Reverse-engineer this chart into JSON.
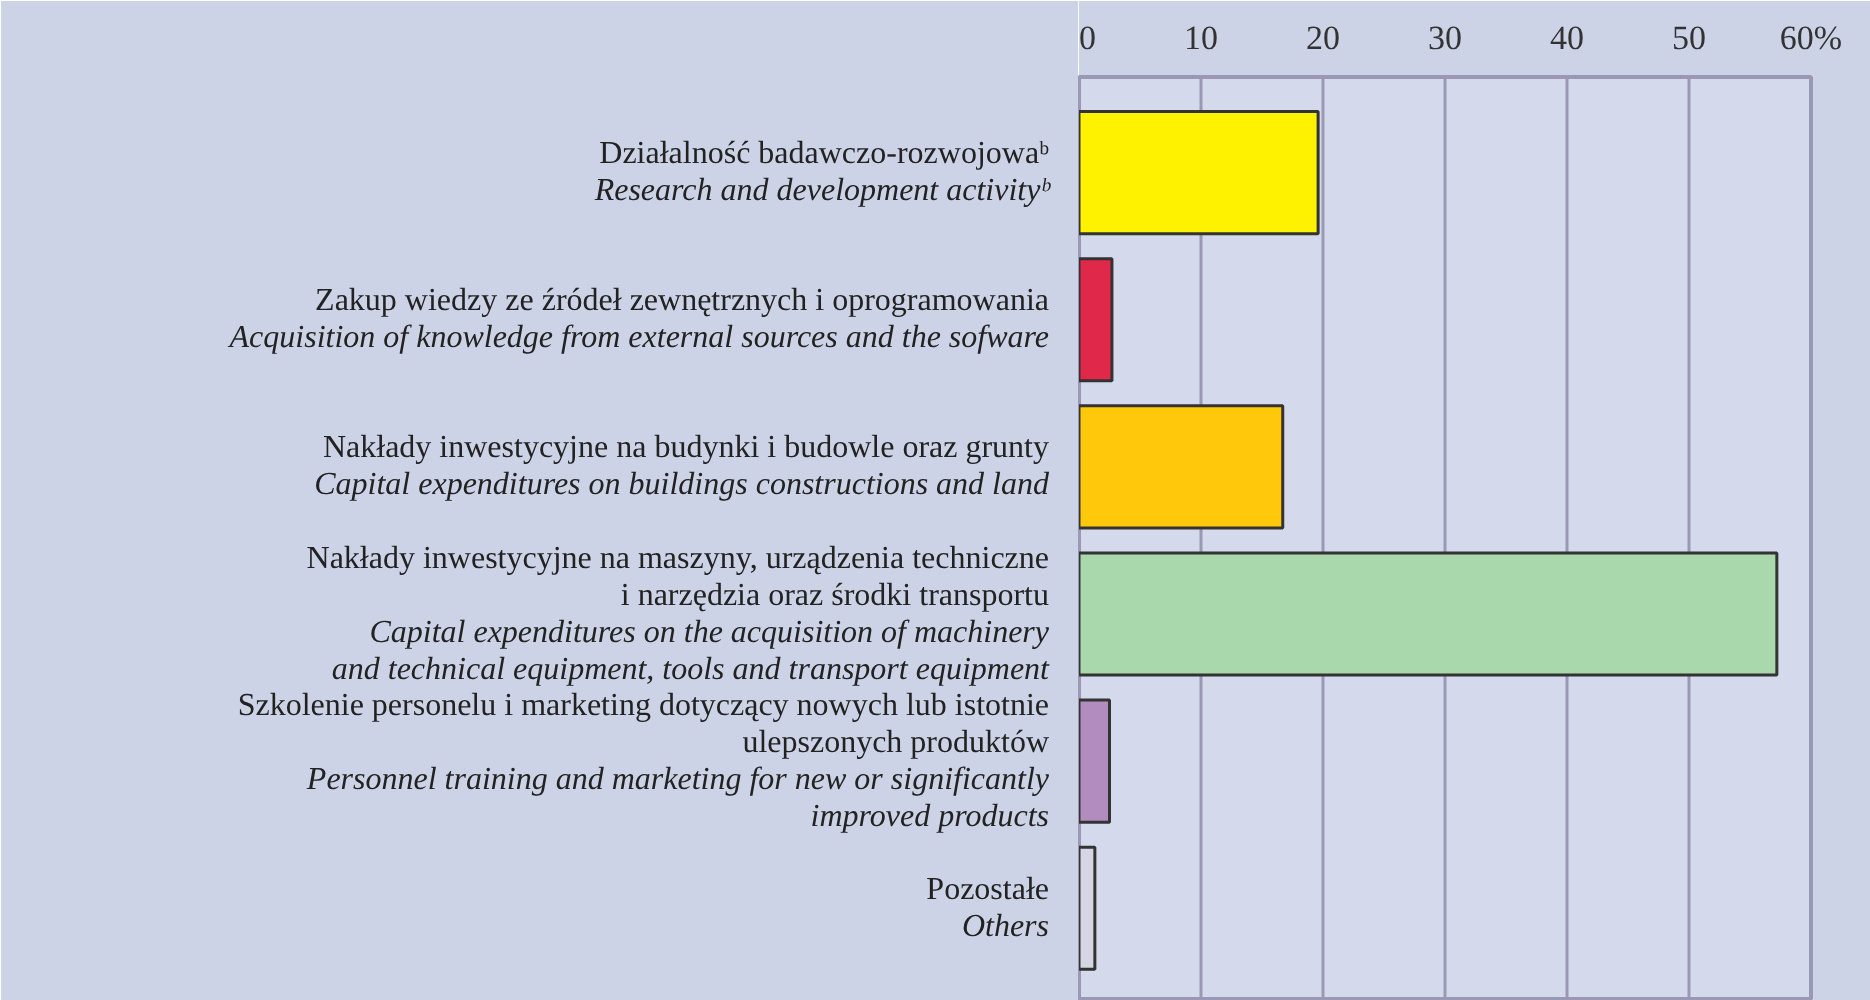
{
  "chart_data": {
    "type": "bar",
    "orientation": "horizontal",
    "categories": [
      "Działalność badawczo-rozwojowaᵇ\nResearch and development activityᵇ",
      "Zakup wiedzy ze źródeł zewnętrznych i oprogramowania\nAcquisition of knowledge from external sources and the sofware",
      "Nakłady inwestycyjne na budynki i budowle oraz grunty\nCapital expenditures on buildings constructions and land",
      "Nakłady inwestycyjne na maszyny, urządzenia techniczne\ni narzędzia oraz środki transportu\nCapital expenditures on the acquisition of machinery\nand technical equipment, tools and transport equipment",
      "Szkolenie personelu i marketing dotyczący nowych lub istotnie\nulepszonych produktów\nPersonnel training and marketing for new or significantly\nimproved products",
      "Pozostałe\nOthers"
    ],
    "values": [
      19.6,
      2.7,
      16.7,
      57.2,
      2.5,
      1.3
    ],
    "colors": [
      "#fff200",
      "#e0284a",
      "#ffc80a",
      "#a8d8ab",
      "#b28cbf",
      "#d4d6e4"
    ],
    "xlim": [
      0,
      60
    ],
    "xticks": [
      0,
      10,
      20,
      30,
      40,
      50,
      {
        "value": 60,
        "label": "60%"
      }
    ],
    "grid": "x"
  }
}
